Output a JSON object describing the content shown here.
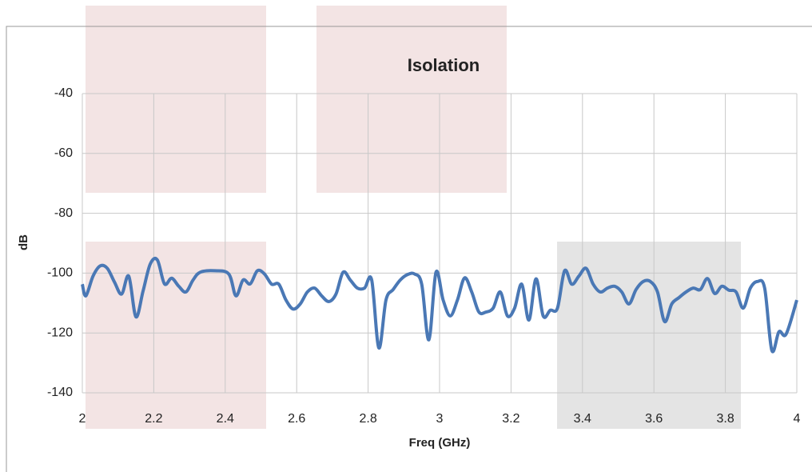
{
  "chart_data": {
    "type": "line",
    "title": "Isolation",
    "x_label": "Freq (GHz)",
    "y_label": "dB",
    "x": [
      2.0,
      2.01,
      2.03,
      2.05,
      2.07,
      2.09,
      2.11,
      2.13,
      2.15,
      2.17,
      2.19,
      2.21,
      2.23,
      2.25,
      2.27,
      2.29,
      2.31,
      2.33,
      2.37,
      2.41,
      2.43,
      2.45,
      2.47,
      2.49,
      2.51,
      2.53,
      2.55,
      2.57,
      2.59,
      2.61,
      2.63,
      2.65,
      2.67,
      2.69,
      2.71,
      2.73,
      2.75,
      2.77,
      2.79,
      2.81,
      2.83,
      2.85,
      2.87,
      2.89,
      2.91,
      2.93,
      2.95,
      2.97,
      2.99,
      3.01,
      3.03,
      3.05,
      3.07,
      3.09,
      3.11,
      3.13,
      3.15,
      3.17,
      3.19,
      3.21,
      3.23,
      3.25,
      3.27,
      3.29,
      3.31,
      3.33,
      3.35,
      3.37,
      3.39,
      3.41,
      3.43,
      3.45,
      3.47,
      3.49,
      3.51,
      3.53,
      3.55,
      3.57,
      3.59,
      3.61,
      3.63,
      3.65,
      3.67,
      3.69,
      3.71,
      3.73,
      3.75,
      3.77,
      3.79,
      3.81,
      3.83,
      3.85,
      3.87,
      3.89,
      3.91,
      3.93,
      3.95,
      3.97,
      4.0
    ],
    "series": [
      {
        "name": "Isolation",
        "color": "#4a78b5",
        "values": [
          -103.7,
          -107.6,
          -101,
          -97.6,
          -98.4,
          -103,
          -107,
          -101,
          -114.6,
          -106,
          -97,
          -95.6,
          -103.6,
          -101.7,
          -104.4,
          -106.3,
          -102.3,
          -99.7,
          -99.2,
          -100.3,
          -107.6,
          -102.3,
          -103.6,
          -99.2,
          -100.3,
          -103.7,
          -103.7,
          -109,
          -112,
          -110.3,
          -106.3,
          -105,
          -107.6,
          -109.5,
          -107,
          -99.7,
          -102.3,
          -105,
          -105,
          -102.3,
          -125,
          -109,
          -105.5,
          -102.3,
          -100.5,
          -100.3,
          -103.7,
          -122.3,
          -99.7,
          -109,
          -114.3,
          -109,
          -101.6,
          -106.3,
          -113,
          -113,
          -111.7,
          -106.3,
          -114.3,
          -111.7,
          -103.7,
          -115.7,
          -101.9,
          -114.3,
          -112.4,
          -111.7,
          -99.2,
          -103.7,
          -101,
          -98.4,
          -103.7,
          -106.3,
          -105,
          -104.4,
          -106.3,
          -110.3,
          -105.5,
          -102.8,
          -102.8,
          -106.3,
          -116.2,
          -110.3,
          -108.2,
          -106.3,
          -105,
          -105.5,
          -101.8,
          -106.8,
          -104.4,
          -105.7,
          -106.3,
          -111.7,
          -105,
          -102.8,
          -105,
          -125.8,
          -119.6,
          -120.4,
          -109
        ]
      }
    ],
    "xlim": [
      2,
      4
    ],
    "xticks": [
      2,
      2.2,
      2.4,
      2.6,
      2.8,
      3,
      3.2,
      3.4,
      3.6,
      3.8,
      4
    ],
    "ylim": [
      -140,
      -40
    ],
    "yticks": [
      -140,
      -120,
      -100,
      -80,
      -60,
      -40
    ],
    "grid": true
  }
}
